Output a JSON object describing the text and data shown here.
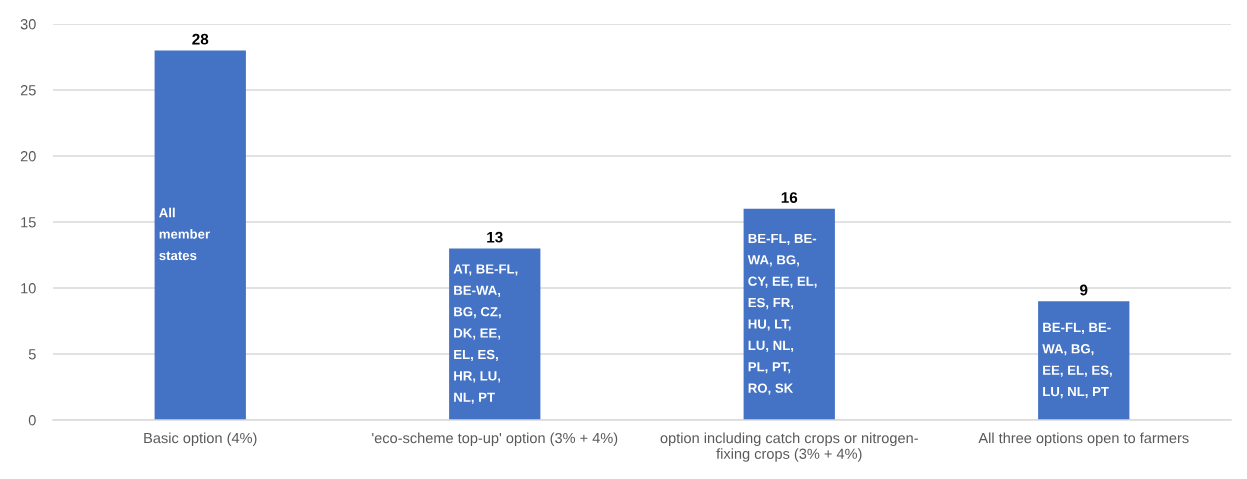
{
  "chart_data": {
    "type": "bar",
    "categories": [
      "Basic option (4%)",
      "'eco-scheme top-up' option (3% + 4%)",
      "option including catch crops or nitrogen-\nfixing crops (3% + 4%)",
      "All three options open to farmers"
    ],
    "values": [
      28,
      13,
      16,
      9
    ],
    "color": "#4472c4",
    "ylim": [
      0,
      30
    ],
    "yticks": [
      0,
      5,
      10,
      15,
      20,
      25,
      30
    ],
    "grid": "y",
    "data_labels": true,
    "annotations": [
      "All\nmember\nstates",
      "AT, BE-FL,\nBE-WA,\nBG, CZ,\nDK, EE,\nEL, ES,\nHR, LU,\nNL, PT",
      "BE-FL, BE-\nWA, BG,\nCY, EE, EL,\nES, FR,\nHU, LT,\nLU, NL,\nPL, PT,\nRO, SK",
      "BE-FL, BE-\nWA, BG,\nEE, EL, ES,\nLU, NL, PT"
    ]
  }
}
